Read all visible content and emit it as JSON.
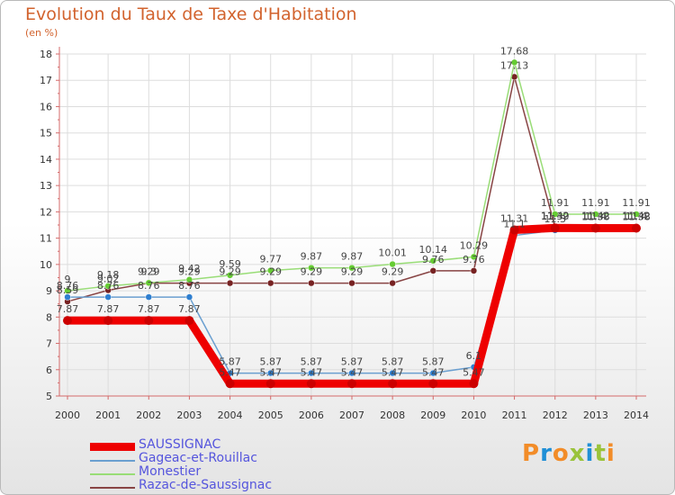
{
  "title": "Evolution du Taux de Taxe d'Habitation",
  "subtitle": "(en %)",
  "logo_text": "Proxiti",
  "colors": {
    "title": "#d2632e",
    "axis": "#d46a6a",
    "grid": "#dddddd",
    "legend_text": "#5555dd",
    "logo": [
      "#f28c28",
      "#1f8fd6",
      "#f28c28",
      "#9ac33a",
      "#1f8fd6",
      "#9ac33a",
      "#f28c28"
    ]
  },
  "chart_data": {
    "type": "line",
    "title": "Evolution du Taux de Taxe d'Habitation",
    "ylabel": "(en %)",
    "xlabel": "",
    "x": [
      "2000",
      "2001",
      "2002",
      "2003",
      "2004",
      "2005",
      "2006",
      "2007",
      "2008",
      "2009",
      "2010",
      "2011",
      "2012",
      "2013",
      "2014"
    ],
    "yticks": [
      5,
      6,
      7,
      8,
      9,
      10,
      11,
      12,
      13,
      14,
      15,
      16,
      17,
      18
    ],
    "ylim": [
      5,
      18
    ],
    "grid": true,
    "legend_position": "bottom-left",
    "series": [
      {
        "name": "SAUSSIGNAC",
        "color": "#ee0000",
        "style": "thick",
        "values": [
          7.87,
          7.87,
          7.87,
          7.87,
          5.47,
          5.47,
          5.47,
          5.47,
          5.47,
          5.47,
          5.47,
          11.31,
          11.39,
          11.38,
          11.38
        ],
        "labels": [
          "7.87",
          "7.87",
          "7.87",
          "7.87",
          "5.47",
          "5.47",
          "5.47",
          "5.47",
          "5.47",
          "5.47",
          "5.47",
          "11.31",
          "11.39",
          "11.38",
          "11.38"
        ]
      },
      {
        "name": "Gageac-et-Rouillac",
        "color": "#6a9fd0",
        "marker": "#2f7fd0",
        "values": [
          8.76,
          8.76,
          8.76,
          8.76,
          5.87,
          5.87,
          5.87,
          5.87,
          5.87,
          5.87,
          6.1,
          11.1,
          11.3,
          11.4,
          11.4
        ],
        "labels": [
          "8.76",
          "8.76",
          "8.76",
          "8.76",
          "5.87",
          "5.87",
          "5.87",
          "5.87",
          "5.87",
          "5.87",
          "6.1",
          "11.1",
          "11.3",
          "11.4",
          "11.4"
        ]
      },
      {
        "name": "Monestier",
        "color": "#99dd77",
        "marker": "#66cc33",
        "values": [
          9.0,
          9.18,
          9.3,
          9.42,
          9.59,
          9.77,
          9.87,
          9.87,
          10.01,
          10.14,
          10.29,
          17.68,
          11.91,
          11.91,
          11.91
        ],
        "labels": [
          "9",
          "9.18",
          "9.3",
          "9.42",
          "9.59",
          "9.77",
          "9.87",
          "9.87",
          "10.01",
          "10.14",
          "10.29",
          "17.68",
          "11.91",
          "11.91",
          "11.91"
        ]
      },
      {
        "name": "Razac-de-Saussignac",
        "color": "#884444",
        "marker": "#772222",
        "values": [
          8.59,
          9.02,
          9.29,
          9.29,
          9.29,
          9.29,
          9.29,
          9.29,
          9.29,
          9.76,
          9.76,
          17.13,
          11.42,
          11.42,
          11.42
        ],
        "labels": [
          "8.59",
          "9.02",
          "9.29",
          "9.29",
          "9.29",
          "9.29",
          "9.29",
          "9.29",
          "9.29",
          "9.76",
          "9.76",
          "17.13",
          "11.42",
          "11.42",
          "11.42"
        ]
      }
    ]
  }
}
